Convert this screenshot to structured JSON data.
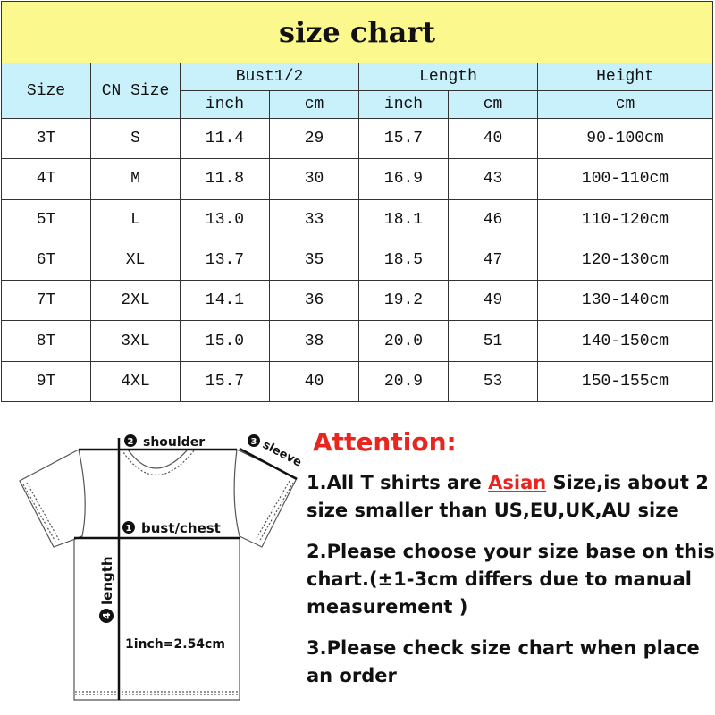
{
  "title": "size chart",
  "headers": {
    "size": "Size",
    "cn_size": "CN Size",
    "bust": "Bust1/2",
    "length": "Length",
    "height": "Height",
    "inch": "inch",
    "cm": "cm"
  },
  "rows": [
    [
      "3T",
      "S",
      "11.4",
      "29",
      "15.7",
      "40",
      "90-100cm"
    ],
    [
      "4T",
      "M",
      "11.8",
      "30",
      "16.9",
      "43",
      "100-110cm"
    ],
    [
      "5T",
      "L",
      "13.0",
      "33",
      "18.1",
      "46",
      "110-120cm"
    ],
    [
      "6T",
      "XL",
      "13.7",
      "35",
      "18.5",
      "47",
      "120-130cm"
    ],
    [
      "7T",
      "2XL",
      "14.1",
      "36",
      "19.2",
      "49",
      "130-140cm"
    ],
    [
      "8T",
      "3XL",
      "15.0",
      "38",
      "20.0",
      "51",
      "140-150cm"
    ],
    [
      "9T",
      "4XL",
      "15.7",
      "40",
      "20.9",
      "53",
      "150-155cm"
    ]
  ],
  "diagram": {
    "shoulder": "shoulder",
    "sleeve": "sleeve",
    "bust": "bust/chest",
    "length": "length",
    "conversion": "1inch=2.54cm",
    "n1": "1",
    "n2": "2",
    "n3": "3",
    "n4": "4"
  },
  "attention": {
    "title": "Attention:",
    "note1_a": "1.All T shirts are ",
    "note1_asian": "Asian",
    "note1_b": " Size,is about 2 size smaller than US,EU,UK,AU size",
    "note2": "2.Please choose your size base on this chart.(±1-3cm differs due to manual measurement )",
    "note3": "3.Please check size chart when place an order"
  },
  "colors": {
    "title_bg": "#fbf98e",
    "header_bg": "#c8f1fb",
    "accent": "#e8251f"
  }
}
